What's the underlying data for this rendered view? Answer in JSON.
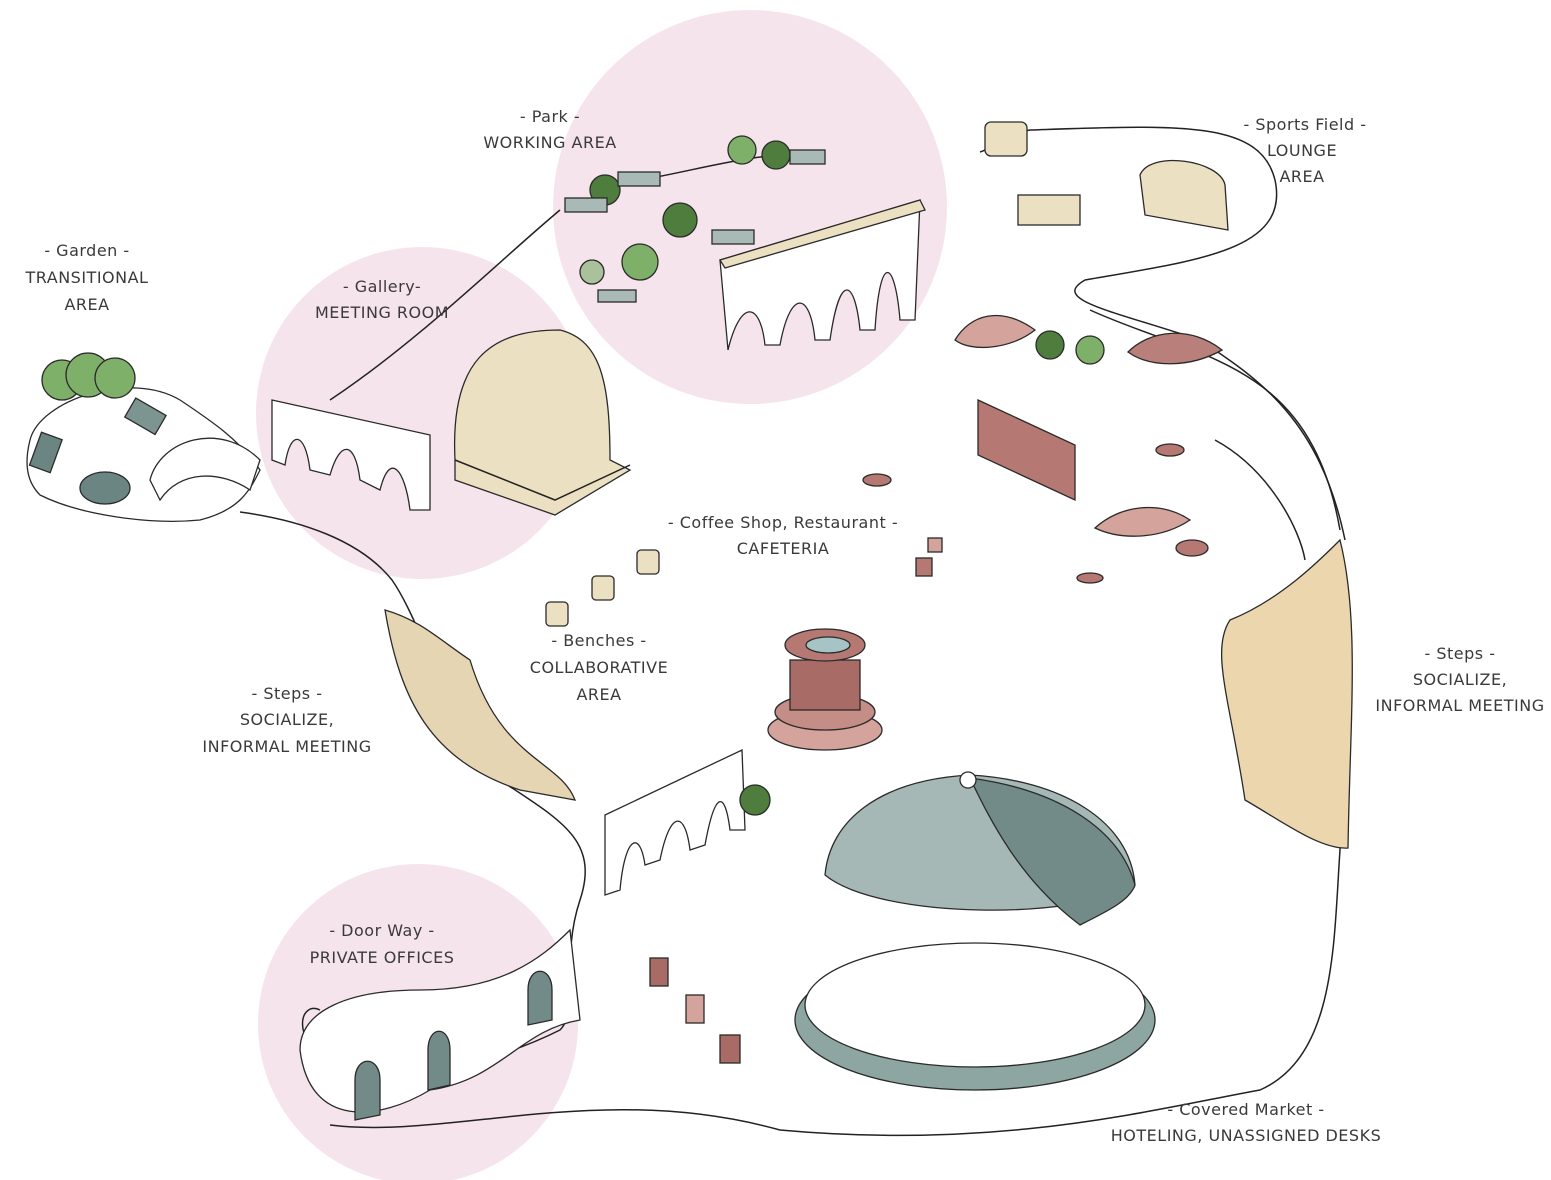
{
  "zones": [
    {
      "place": "- Park -",
      "use": [
        "WORKING AREA"
      ]
    },
    {
      "place": "- Sports Field -",
      "use": [
        "LOUNGE",
        "AREA"
      ]
    },
    {
      "place": "- Garden -",
      "use": [
        "TRANSITIONAL",
        "AREA"
      ]
    },
    {
      "place": "- Gallery-",
      "use": [
        "MEETING ROOM"
      ]
    },
    {
      "place": "- Coffee Shop, Restaurant -",
      "use": [
        "CAFETERIA"
      ]
    },
    {
      "place": "- Benches -",
      "use": [
        "COLLABORATIVE",
        "AREA"
      ]
    },
    {
      "place": "- Steps -",
      "use": [
        "SOCIALIZE,",
        "INFORMAL MEETING"
      ]
    },
    {
      "place": "- Steps -",
      "use": [
        "SOCIALIZE,",
        "INFORMAL MEETING"
      ]
    },
    {
      "place": "- Door Way -",
      "use": [
        "PRIVATE OFFICES"
      ]
    },
    {
      "place": "- Covered Market -",
      "use": [
        "HOTELING, UNASSIGNED DESKS"
      ]
    }
  ]
}
